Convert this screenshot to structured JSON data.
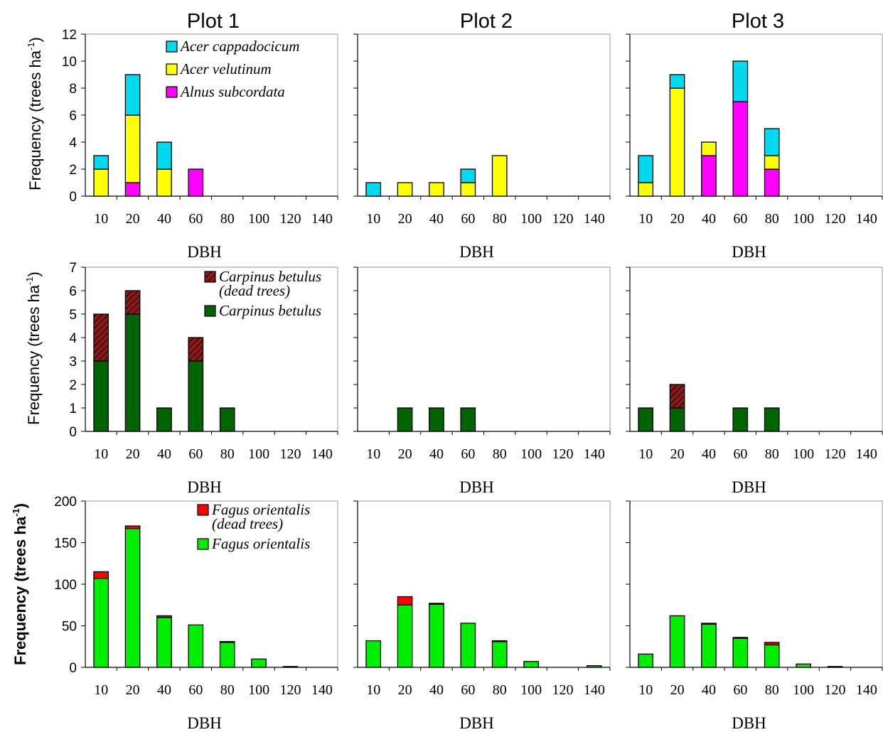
{
  "figure": {
    "column_titles": [
      "Plot 1",
      "Plot 2",
      "Plot 3"
    ],
    "ylabel": "Frequency (trees ha",
    "ylabel_sup": "-1",
    "ylabel_close": ")",
    "xlabel": "DBH"
  },
  "chart_data": [
    {
      "type": "bar",
      "stacked": true,
      "panel": "Plot 1 / row 1",
      "categories": [
        "10",
        "20",
        "40",
        "60",
        "80",
        "100",
        "120",
        "140"
      ],
      "xlabel": "DBH",
      "ylabel": "Frequency (trees ha-1)",
      "ylim": [
        0,
        12
      ],
      "yticks": [
        0,
        2,
        4,
        6,
        8,
        10,
        12
      ],
      "legend": "top-right",
      "series": [
        {
          "name": "Alnus subcordata",
          "color": "#ff00ff",
          "values": [
            0,
            1,
            0,
            2,
            0,
            0,
            0,
            0
          ]
        },
        {
          "name": "Acer velutinum",
          "color": "#ffff00",
          "values": [
            2,
            5,
            2,
            0,
            0,
            0,
            0,
            0
          ]
        },
        {
          "name": "Acer cappadocicum",
          "color": "#00d9ee",
          "values": [
            1,
            3,
            2,
            0,
            0,
            0,
            0,
            0
          ]
        }
      ]
    },
    {
      "type": "bar",
      "stacked": true,
      "panel": "Plot 2 / row 1",
      "categories": [
        "10",
        "20",
        "40",
        "60",
        "80",
        "100",
        "120",
        "140"
      ],
      "xlabel": "DBH",
      "ylim": [
        0,
        12
      ],
      "series": [
        {
          "name": "Alnus subcordata",
          "color": "#ff00ff",
          "values": [
            0,
            0,
            0,
            0,
            0,
            0,
            0,
            0
          ]
        },
        {
          "name": "Acer velutinum",
          "color": "#ffff00",
          "values": [
            0,
            1,
            1,
            1,
            3,
            0,
            0,
            0
          ]
        },
        {
          "name": "Acer cappadocicum",
          "color": "#00d9ee",
          "values": [
            1,
            0,
            0,
            1,
            0,
            0,
            0,
            0
          ]
        }
      ]
    },
    {
      "type": "bar",
      "stacked": true,
      "panel": "Plot 3 / row 1",
      "categories": [
        "10",
        "20",
        "40",
        "60",
        "80",
        "100",
        "120",
        "140"
      ],
      "xlabel": "DBH",
      "ylim": [
        0,
        12
      ],
      "series": [
        {
          "name": "Alnus subcordata",
          "color": "#ff00ff",
          "values": [
            0,
            0,
            3,
            7,
            2,
            0,
            0,
            0
          ]
        },
        {
          "name": "Acer velutinum",
          "color": "#ffff00",
          "values": [
            1,
            8,
            1,
            0,
            1,
            0,
            0,
            0
          ]
        },
        {
          "name": "Acer cappadocicum",
          "color": "#00d9ee",
          "values": [
            2,
            1,
            0,
            3,
            2,
            0,
            0,
            0
          ]
        }
      ]
    },
    {
      "type": "bar",
      "stacked": true,
      "panel": "Plot 1 / row 2",
      "categories": [
        "10",
        "20",
        "40",
        "60",
        "80",
        "100",
        "120",
        "140"
      ],
      "xlabel": "DBH",
      "ylabel": "Frequency (trees ha-1)",
      "ylim": [
        0,
        7
      ],
      "yticks": [
        0,
        1,
        2,
        3,
        4,
        5,
        6,
        7
      ],
      "legend": "top-right",
      "series": [
        {
          "name": "Carpinus betulus",
          "color": "#006400",
          "values": [
            3,
            5,
            1,
            3,
            1,
            0,
            0,
            0
          ]
        },
        {
          "name": "Carpinus betulus (dead trees)",
          "color": "#8b1a1a",
          "pattern": "hatch",
          "values": [
            2,
            1,
            0,
            1,
            0,
            0,
            0,
            0
          ]
        }
      ]
    },
    {
      "type": "bar",
      "stacked": true,
      "panel": "Plot 2 / row 2",
      "categories": [
        "10",
        "20",
        "40",
        "60",
        "80",
        "100",
        "120",
        "140"
      ],
      "xlabel": "DBH",
      "ylim": [
        0,
        7
      ],
      "series": [
        {
          "name": "Carpinus betulus",
          "color": "#006400",
          "values": [
            0,
            1,
            1,
            1,
            0,
            0,
            0,
            0
          ]
        },
        {
          "name": "Carpinus betulus (dead trees)",
          "color": "#8b1a1a",
          "pattern": "hatch",
          "values": [
            0,
            0,
            0,
            0,
            0,
            0,
            0,
            0
          ]
        }
      ]
    },
    {
      "type": "bar",
      "stacked": true,
      "panel": "Plot 3 / row 2",
      "categories": [
        "10",
        "20",
        "40",
        "60",
        "80",
        "100",
        "120",
        "140"
      ],
      "xlabel": "DBH",
      "ylim": [
        0,
        7
      ],
      "series": [
        {
          "name": "Carpinus betulus",
          "color": "#006400",
          "values": [
            1,
            1,
            0,
            1,
            1,
            0,
            0,
            0
          ]
        },
        {
          "name": "Carpinus betulus (dead trees)",
          "color": "#8b1a1a",
          "pattern": "hatch",
          "values": [
            0,
            1,
            0,
            0,
            0,
            0,
            0,
            0
          ]
        }
      ]
    },
    {
      "type": "bar",
      "stacked": true,
      "panel": "Plot 1 / row 3",
      "categories": [
        "10",
        "20",
        "40",
        "60",
        "80",
        "100",
        "120",
        "140"
      ],
      "xlabel": "DBH",
      "ylabel": "Frequency (trees ha-1)",
      "ylim": [
        0,
        200
      ],
      "yticks": [
        0,
        50,
        100,
        150,
        200
      ],
      "legend": "top-right",
      "series": [
        {
          "name": "Fagus orientalis",
          "color": "#00ee00",
          "values": [
            107,
            167,
            60,
            51,
            30,
            10,
            1,
            0
          ]
        },
        {
          "name": "Fagus orientalis (dead trees)",
          "color": "#ff0000",
          "values": [
            8,
            3,
            2,
            0,
            1,
            0,
            0,
            0
          ]
        }
      ]
    },
    {
      "type": "bar",
      "stacked": true,
      "panel": "Plot 2 / row 3",
      "categories": [
        "10",
        "20",
        "40",
        "60",
        "80",
        "100",
        "120",
        "140"
      ],
      "xlabel": "DBH",
      "ylim": [
        0,
        200
      ],
      "series": [
        {
          "name": "Fagus orientalis",
          "color": "#00ee00",
          "values": [
            32,
            75,
            76,
            53,
            31,
            7,
            0,
            2
          ]
        },
        {
          "name": "Fagus orientalis (dead trees)",
          "color": "#ff0000",
          "values": [
            0,
            10,
            1,
            0,
            1,
            0,
            0,
            0
          ]
        }
      ]
    },
    {
      "type": "bar",
      "stacked": true,
      "panel": "Plot 3 / row 3",
      "categories": [
        "10",
        "20",
        "40",
        "60",
        "80",
        "100",
        "120",
        "140"
      ],
      "xlabel": "DBH",
      "ylim": [
        0,
        200
      ],
      "series": [
        {
          "name": "Fagus orientalis",
          "color": "#00ee00",
          "values": [
            16,
            62,
            52,
            35,
            27,
            4,
            1,
            0
          ]
        },
        {
          "name": "Fagus orientalis (dead trees)",
          "color": "#ff0000",
          "values": [
            0,
            0,
            1,
            1,
            3,
            0,
            0,
            0
          ]
        }
      ]
    }
  ],
  "legends": [
    {
      "items": [
        {
          "label": "Acer cappadocicum",
          "color": "#00d9ee"
        },
        {
          "label": "Acer velutinum",
          "color": "#ffff00"
        },
        {
          "label": "Alnus subcordata",
          "color": "#ff00ff"
        }
      ]
    },
    {
      "items": [
        {
          "label": "Carpinus betulus",
          "label2": "(dead trees)",
          "color": "#8b1a1a",
          "pattern": "hatch"
        },
        {
          "label": "Carpinus betulus",
          "color": "#006400"
        }
      ]
    },
    {
      "items": [
        {
          "label": "Fagus orientalis",
          "label2": "(dead trees)",
          "color": "#ff0000"
        },
        {
          "label": "Fagus orientalis",
          "color": "#00ee00"
        }
      ]
    }
  ]
}
